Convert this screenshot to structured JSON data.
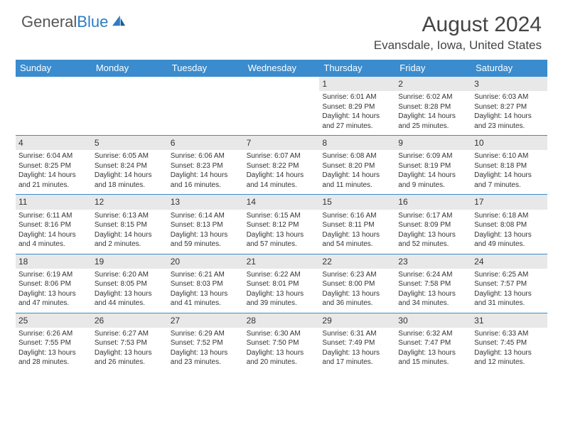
{
  "logo": {
    "word1": "General",
    "word2": "Blue"
  },
  "monthTitle": "August 2024",
  "location": "Evansdale, Iowa, United States",
  "dayHeaders": [
    "Sunday",
    "Monday",
    "Tuesday",
    "Wednesday",
    "Thursday",
    "Friday",
    "Saturday"
  ],
  "colors": {
    "headerBg": "#3a8cce",
    "headerText": "#ffffff",
    "dayNumBg": "#e8e8e8",
    "border": "#3a8cce",
    "logoBlue": "#2e7cc4"
  },
  "weeks": [
    [
      null,
      null,
      null,
      null,
      {
        "n": "1",
        "sr": "Sunrise: 6:01 AM",
        "ss": "Sunset: 8:29 PM",
        "d1": "Daylight: 14 hours",
        "d2": "and 27 minutes."
      },
      {
        "n": "2",
        "sr": "Sunrise: 6:02 AM",
        "ss": "Sunset: 8:28 PM",
        "d1": "Daylight: 14 hours",
        "d2": "and 25 minutes."
      },
      {
        "n": "3",
        "sr": "Sunrise: 6:03 AM",
        "ss": "Sunset: 8:27 PM",
        "d1": "Daylight: 14 hours",
        "d2": "and 23 minutes."
      }
    ],
    [
      {
        "n": "4",
        "sr": "Sunrise: 6:04 AM",
        "ss": "Sunset: 8:25 PM",
        "d1": "Daylight: 14 hours",
        "d2": "and 21 minutes."
      },
      {
        "n": "5",
        "sr": "Sunrise: 6:05 AM",
        "ss": "Sunset: 8:24 PM",
        "d1": "Daylight: 14 hours",
        "d2": "and 18 minutes."
      },
      {
        "n": "6",
        "sr": "Sunrise: 6:06 AM",
        "ss": "Sunset: 8:23 PM",
        "d1": "Daylight: 14 hours",
        "d2": "and 16 minutes."
      },
      {
        "n": "7",
        "sr": "Sunrise: 6:07 AM",
        "ss": "Sunset: 8:22 PM",
        "d1": "Daylight: 14 hours",
        "d2": "and 14 minutes."
      },
      {
        "n": "8",
        "sr": "Sunrise: 6:08 AM",
        "ss": "Sunset: 8:20 PM",
        "d1": "Daylight: 14 hours",
        "d2": "and 11 minutes."
      },
      {
        "n": "9",
        "sr": "Sunrise: 6:09 AM",
        "ss": "Sunset: 8:19 PM",
        "d1": "Daylight: 14 hours",
        "d2": "and 9 minutes."
      },
      {
        "n": "10",
        "sr": "Sunrise: 6:10 AM",
        "ss": "Sunset: 8:18 PM",
        "d1": "Daylight: 14 hours",
        "d2": "and 7 minutes."
      }
    ],
    [
      {
        "n": "11",
        "sr": "Sunrise: 6:11 AM",
        "ss": "Sunset: 8:16 PM",
        "d1": "Daylight: 14 hours",
        "d2": "and 4 minutes."
      },
      {
        "n": "12",
        "sr": "Sunrise: 6:13 AM",
        "ss": "Sunset: 8:15 PM",
        "d1": "Daylight: 14 hours",
        "d2": "and 2 minutes."
      },
      {
        "n": "13",
        "sr": "Sunrise: 6:14 AM",
        "ss": "Sunset: 8:13 PM",
        "d1": "Daylight: 13 hours",
        "d2": "and 59 minutes."
      },
      {
        "n": "14",
        "sr": "Sunrise: 6:15 AM",
        "ss": "Sunset: 8:12 PM",
        "d1": "Daylight: 13 hours",
        "d2": "and 57 minutes."
      },
      {
        "n": "15",
        "sr": "Sunrise: 6:16 AM",
        "ss": "Sunset: 8:11 PM",
        "d1": "Daylight: 13 hours",
        "d2": "and 54 minutes."
      },
      {
        "n": "16",
        "sr": "Sunrise: 6:17 AM",
        "ss": "Sunset: 8:09 PM",
        "d1": "Daylight: 13 hours",
        "d2": "and 52 minutes."
      },
      {
        "n": "17",
        "sr": "Sunrise: 6:18 AM",
        "ss": "Sunset: 8:08 PM",
        "d1": "Daylight: 13 hours",
        "d2": "and 49 minutes."
      }
    ],
    [
      {
        "n": "18",
        "sr": "Sunrise: 6:19 AM",
        "ss": "Sunset: 8:06 PM",
        "d1": "Daylight: 13 hours",
        "d2": "and 47 minutes."
      },
      {
        "n": "19",
        "sr": "Sunrise: 6:20 AM",
        "ss": "Sunset: 8:05 PM",
        "d1": "Daylight: 13 hours",
        "d2": "and 44 minutes."
      },
      {
        "n": "20",
        "sr": "Sunrise: 6:21 AM",
        "ss": "Sunset: 8:03 PM",
        "d1": "Daylight: 13 hours",
        "d2": "and 41 minutes."
      },
      {
        "n": "21",
        "sr": "Sunrise: 6:22 AM",
        "ss": "Sunset: 8:01 PM",
        "d1": "Daylight: 13 hours",
        "d2": "and 39 minutes."
      },
      {
        "n": "22",
        "sr": "Sunrise: 6:23 AM",
        "ss": "Sunset: 8:00 PM",
        "d1": "Daylight: 13 hours",
        "d2": "and 36 minutes."
      },
      {
        "n": "23",
        "sr": "Sunrise: 6:24 AM",
        "ss": "Sunset: 7:58 PM",
        "d1": "Daylight: 13 hours",
        "d2": "and 34 minutes."
      },
      {
        "n": "24",
        "sr": "Sunrise: 6:25 AM",
        "ss": "Sunset: 7:57 PM",
        "d1": "Daylight: 13 hours",
        "d2": "and 31 minutes."
      }
    ],
    [
      {
        "n": "25",
        "sr": "Sunrise: 6:26 AM",
        "ss": "Sunset: 7:55 PM",
        "d1": "Daylight: 13 hours",
        "d2": "and 28 minutes."
      },
      {
        "n": "26",
        "sr": "Sunrise: 6:27 AM",
        "ss": "Sunset: 7:53 PM",
        "d1": "Daylight: 13 hours",
        "d2": "and 26 minutes."
      },
      {
        "n": "27",
        "sr": "Sunrise: 6:29 AM",
        "ss": "Sunset: 7:52 PM",
        "d1": "Daylight: 13 hours",
        "d2": "and 23 minutes."
      },
      {
        "n": "28",
        "sr": "Sunrise: 6:30 AM",
        "ss": "Sunset: 7:50 PM",
        "d1": "Daylight: 13 hours",
        "d2": "and 20 minutes."
      },
      {
        "n": "29",
        "sr": "Sunrise: 6:31 AM",
        "ss": "Sunset: 7:49 PM",
        "d1": "Daylight: 13 hours",
        "d2": "and 17 minutes."
      },
      {
        "n": "30",
        "sr": "Sunrise: 6:32 AM",
        "ss": "Sunset: 7:47 PM",
        "d1": "Daylight: 13 hours",
        "d2": "and 15 minutes."
      },
      {
        "n": "31",
        "sr": "Sunrise: 6:33 AM",
        "ss": "Sunset: 7:45 PM",
        "d1": "Daylight: 13 hours",
        "d2": "and 12 minutes."
      }
    ]
  ]
}
